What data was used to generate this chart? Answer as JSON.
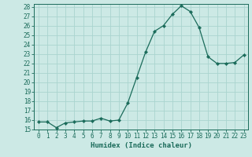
{
  "x": [
    0,
    1,
    2,
    3,
    4,
    5,
    6,
    7,
    8,
    9,
    10,
    11,
    12,
    13,
    14,
    15,
    16,
    17,
    18,
    19,
    20,
    21,
    22,
    23
  ],
  "y": [
    15.8,
    15.8,
    15.2,
    15.7,
    15.8,
    15.9,
    15.9,
    16.2,
    15.9,
    16.0,
    17.8,
    20.5,
    23.2,
    25.4,
    26.0,
    27.2,
    28.1,
    27.5,
    25.8,
    22.7,
    22.0,
    22.0,
    22.1,
    22.9
  ],
  "line_color": "#1a6b5a",
  "marker": "D",
  "marker_size": 2.2,
  "background_color": "#cce9e5",
  "grid_color": "#aad4cf",
  "xlabel": "Humidex (Indice chaleur)",
  "ylim_min": 15,
  "ylim_max": 28,
  "xlim_min": -0.5,
  "xlim_max": 23.5,
  "yticks": [
    15,
    16,
    17,
    18,
    19,
    20,
    21,
    22,
    23,
    24,
    25,
    26,
    27,
    28
  ],
  "xticks": [
    0,
    1,
    2,
    3,
    4,
    5,
    6,
    7,
    8,
    9,
    10,
    11,
    12,
    13,
    14,
    15,
    16,
    17,
    18,
    19,
    20,
    21,
    22,
    23
  ],
  "label_fontsize": 6.5,
  "tick_fontsize": 5.5
}
